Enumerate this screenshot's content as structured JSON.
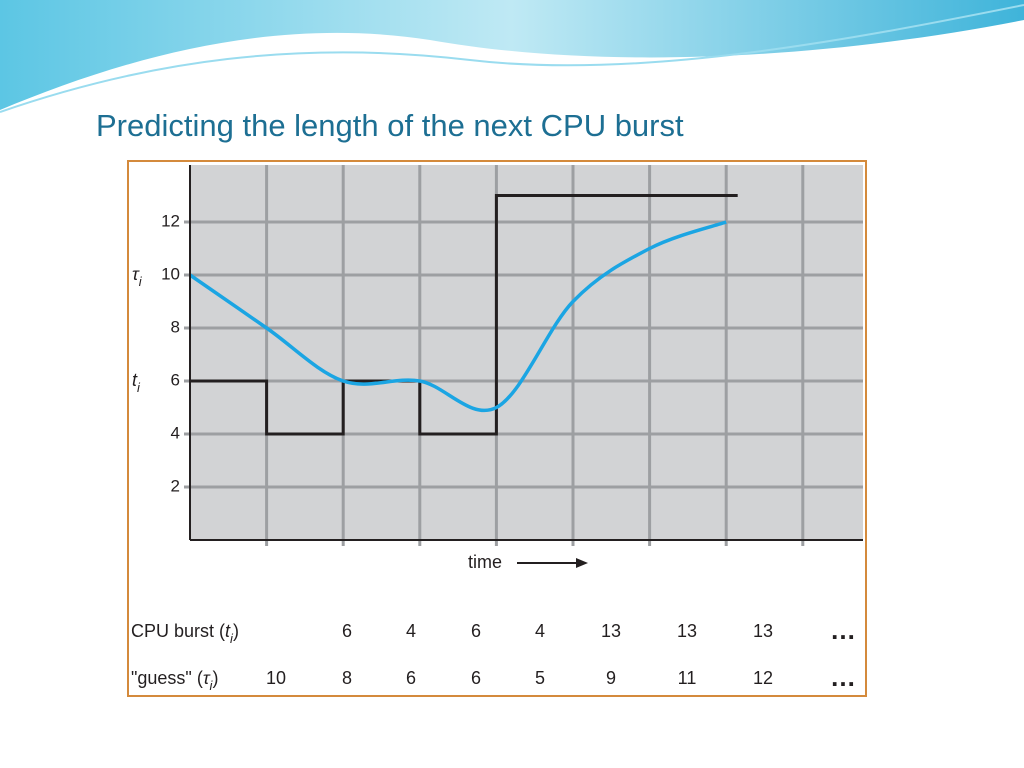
{
  "chart_data": {
    "type": "step-and-curve",
    "title": "Predicting the length of the next CPU burst",
    "x_label": "time",
    "ylim": [
      0,
      14
    ],
    "yticks": [
      2,
      4,
      6,
      8,
      10,
      12
    ],
    "grid": true,
    "series": [
      {
        "name_parts": [
          "CPU burst (",
          "t",
          "i",
          ")"
        ],
        "color": "#231f20",
        "style": "step",
        "values": [
          6,
          4,
          6,
          4,
          13,
          13,
          13
        ]
      },
      {
        "name_parts": [
          "\"guess\" (",
          "τ",
          "i",
          ")"
        ],
        "color": "#1ba5e3",
        "style": "curve",
        "values": [
          10,
          8,
          6,
          6,
          5,
          9,
          11,
          12
        ]
      }
    ],
    "continuation": "…"
  }
}
